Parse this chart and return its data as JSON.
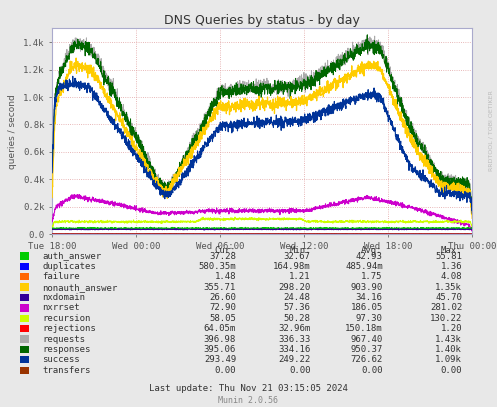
{
  "title": "DNS Queries by status - by day",
  "ylabel": "queries / second",
  "background_color": "#e8e8e8",
  "plot_bg_color": "#ffffff",
  "grid_color": "#e0a0a0",
  "x_tick_labels": [
    "Tue 18:00",
    "Wed 00:00",
    "Wed 06:00",
    "Wed 12:00",
    "Wed 18:00",
    "Thu 00:00"
  ],
  "ylim": [
    0,
    1500
  ],
  "legend": [
    {
      "label": "auth_answer",
      "color": "#00cc00",
      "cur": "37.28",
      "min": "32.67",
      "avg": "42.93",
      "max": "55.81"
    },
    {
      "label": "duplicates",
      "color": "#0000ff",
      "cur": "580.35m",
      "min": "164.98m",
      "avg": "485.94m",
      "max": "1.36"
    },
    {
      "label": "failure",
      "color": "#ff6600",
      "cur": "1.48",
      "min": "1.21",
      "avg": "1.75",
      "max": "4.08"
    },
    {
      "label": "nonauth_answer",
      "color": "#ffcc00",
      "cur": "355.71",
      "min": "298.20",
      "avg": "903.90",
      "max": "1.35k"
    },
    {
      "label": "nxdomain",
      "color": "#330099",
      "cur": "26.60",
      "min": "24.48",
      "avg": "34.16",
      "max": "45.70"
    },
    {
      "label": "nxrrset",
      "color": "#cc00cc",
      "cur": "72.90",
      "min": "57.36",
      "avg": "186.05",
      "max": "281.02"
    },
    {
      "label": "recursion",
      "color": "#ccff00",
      "cur": "58.05",
      "min": "50.28",
      "avg": "97.30",
      "max": "130.22"
    },
    {
      "label": "rejections",
      "color": "#ff0000",
      "cur": "64.05m",
      "min": "32.96m",
      "avg": "150.18m",
      "max": "1.20"
    },
    {
      "label": "requests",
      "color": "#aaaaaa",
      "cur": "396.98",
      "min": "336.33",
      "avg": "967.40",
      "max": "1.43k"
    },
    {
      "label": "responses",
      "color": "#006600",
      "cur": "395.06",
      "min": "334.16",
      "avg": "950.37",
      "max": "1.40k"
    },
    {
      "label": "success",
      "color": "#003399",
      "cur": "293.49",
      "min": "249.22",
      "avg": "726.62",
      "max": "1.09k"
    },
    {
      "label": "transfers",
      "color": "#993300",
      "cur": "0.00",
      "min": "0.00",
      "avg": "0.00",
      "max": "0.00"
    }
  ],
  "watermark": "RRDTOOL / TOBI OETIKER",
  "footer": "Last update: Thu Nov 21 03:15:05 2024",
  "munin_version": "Munin 2.0.56"
}
